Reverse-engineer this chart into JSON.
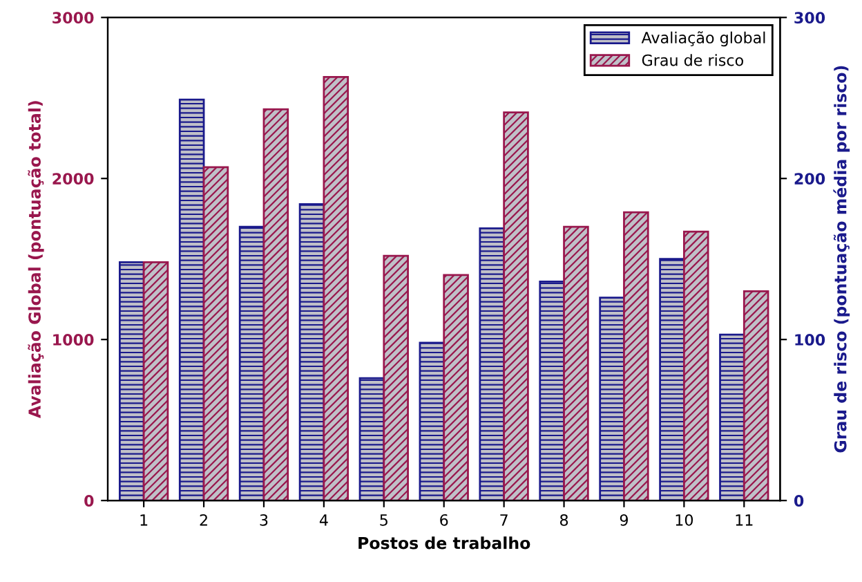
{
  "chart_data": {
    "type": "bar",
    "xlabel": "Postos de trabalho",
    "ylabel": "Avaliação Global (pontuação total)",
    "y2label": "Grau de risco (pontuação média por risco)",
    "categories": [
      "1",
      "2",
      "3",
      "4",
      "5",
      "6",
      "7",
      "8",
      "9",
      "10",
      "11"
    ],
    "series": [
      {
        "name": "Avaliação global",
        "color": "#1a1a8c",
        "values": [
          1480,
          2490,
          1700,
          1840,
          760,
          980,
          1690,
          1360,
          1260,
          1500,
          1030
        ]
      },
      {
        "name": "Grau de risco",
        "color": "#99174d",
        "axis": "y2",
        "values": [
          148,
          207,
          243,
          263,
          152,
          140,
          241,
          170,
          179,
          167,
          130
        ]
      }
    ],
    "ylim": [
      0,
      3000
    ],
    "yticks": [
      0,
      1000,
      2000,
      3000
    ],
    "y2lim": [
      0,
      300
    ],
    "y2ticks": [
      0,
      100,
      200,
      300
    ],
    "grid": false,
    "legend": "top right"
  }
}
